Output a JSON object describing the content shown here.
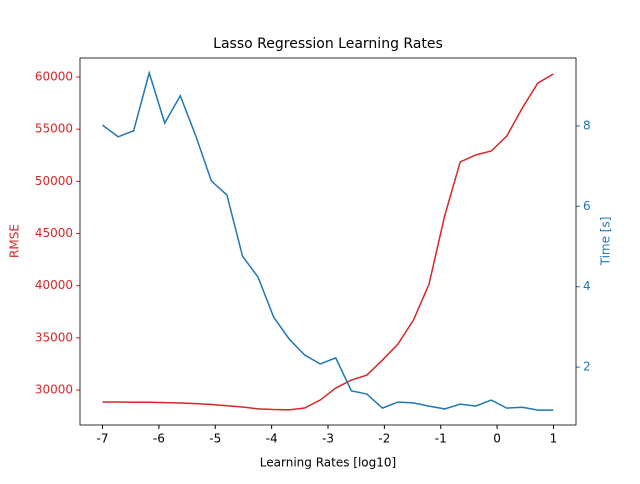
{
  "chart_data": {
    "type": "line",
    "title": "Lasso Regression Learning Rates",
    "xlabel": "Learning Rates [log10]",
    "ylabel": "RMSE",
    "y2label": "Time [s]",
    "x": [
      -7,
      -6.724,
      -6.448,
      -6.172,
      -5.897,
      -5.621,
      -5.345,
      -5.069,
      -4.793,
      -4.517,
      -4.241,
      -3.966,
      -3.69,
      -3.414,
      -3.138,
      -2.862,
      -2.586,
      -2.31,
      -2.034,
      -1.759,
      -1.483,
      -1.207,
      -0.931,
      -0.655,
      -0.379,
      -0.103,
      0.172,
      0.448,
      0.724,
      1
    ],
    "series": [
      {
        "color": "#d62728",
        "axis": "y",
        "values": [
          28850,
          28850,
          28830,
          28830,
          28800,
          28754,
          28700,
          28620,
          28500,
          28370,
          28200,
          28130,
          28100,
          28275,
          29041,
          30192,
          30958,
          31438,
          32876,
          34409,
          36710,
          40160,
          46678,
          51854,
          52525,
          52908,
          54346,
          57030,
          59426,
          60288
        ]
      },
      {
        "color": "#1f77b4",
        "axis": "y2",
        "values": [
          8.02,
          7.73,
          7.88,
          9.32,
          8.07,
          8.75,
          7.75,
          6.63,
          6.28,
          4.76,
          4.24,
          3.25,
          2.7,
          2.3,
          2.08,
          2.23,
          1.41,
          1.33,
          0.98,
          1.13,
          1.11,
          1.03,
          0.96,
          1.08,
          1.03,
          1.18,
          0.98,
          1.0,
          0.93,
          0.93
        ]
      }
    ],
    "xlim": [
      -7.4,
      1.4
    ],
    "xticks": [
      -7,
      -6,
      -5,
      -4,
      -3,
      -2,
      -1,
      0,
      1
    ],
    "ylim": [
      26650,
      61820
    ],
    "yticks": [
      30000,
      35000,
      40000,
      45000,
      50000,
      55000,
      60000
    ],
    "y2lim": [
      0.56,
      9.69
    ],
    "y2ticks": [
      2,
      4,
      6,
      8
    ]
  }
}
